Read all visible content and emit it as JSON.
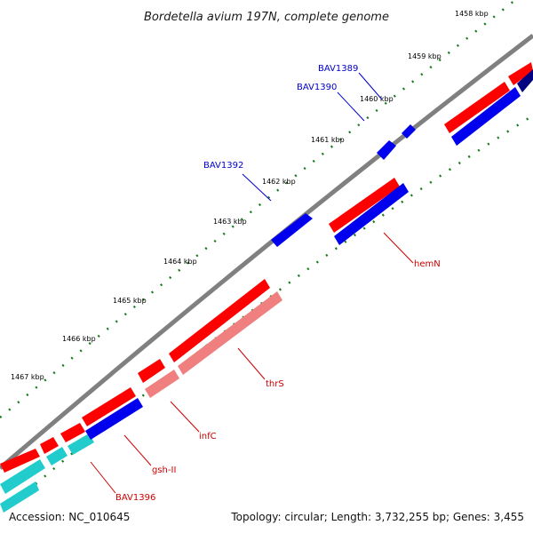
{
  "title": "Bordetella avium 197N, complete genome",
  "footer": {
    "accession": "Accession: NC_010645",
    "topology": "Topology: circular; Length: 3,732,255 bp; Genes: 3,455"
  },
  "ticks": [
    {
      "label": "1458 kbp"
    },
    {
      "label": "1459 kbp"
    },
    {
      "label": "1460 kbp"
    },
    {
      "label": "1461 kbp"
    },
    {
      "label": "1462 kbp"
    },
    {
      "label": "1463 kbp"
    },
    {
      "label": "1464 kbp"
    },
    {
      "label": "1465 kbp"
    },
    {
      "label": "1466 kbp"
    },
    {
      "label": "1467 kbp"
    }
  ],
  "gene_labels": {
    "bav1389": "BAV1389",
    "bav1390": "BAV1390",
    "bav1392": "BAV1392",
    "hemN": "hemN",
    "thrS": "thrS",
    "infC": "infC",
    "gsh_ii": "gsh-II",
    "bav1396": "BAV1396"
  },
  "colors": {
    "backbone": "#808080",
    "forward_gene": "#ff0000",
    "reverse_gene": "#0000ee",
    "rna_like": "#f08080",
    "tile": "#22cccc",
    "dark_gene": "#000080",
    "tick": "#1a7a1a",
    "label_blue": "#0000cc",
    "label_red": "#cc0000"
  }
}
